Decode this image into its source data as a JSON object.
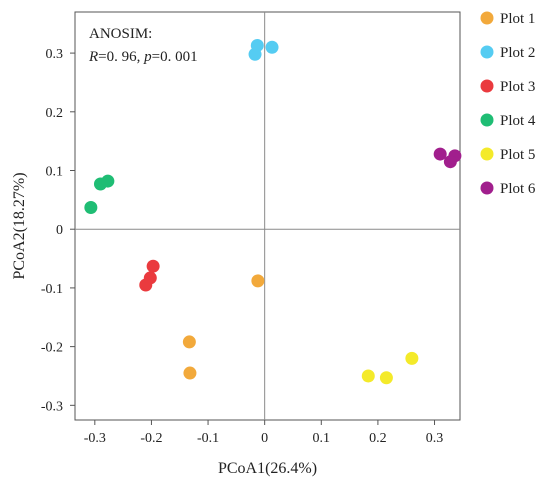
{
  "chart_data": {
    "type": "scatter",
    "xlabel": "PCoA1(26.4%)",
    "ylabel": "PCoA2(18.27%)",
    "xlim": [
      -0.335,
      0.345
    ],
    "ylim": [
      -0.325,
      0.37
    ],
    "xticks": [
      -0.3,
      -0.2,
      -0.1,
      0,
      0.1,
      0.2,
      0.3
    ],
    "xtick_labels": [
      "-0.3",
      "-0.2",
      "-0.1",
      "0",
      "0.1",
      "0.2",
      "0.3"
    ],
    "yticks": [
      -0.3,
      -0.2,
      -0.1,
      0,
      0.1,
      0.2,
      0.3
    ],
    "ytick_labels": [
      "-0.3",
      "-0.2",
      "-0.1",
      "0",
      "0.1",
      "0.2",
      "0.3"
    ],
    "grid": false,
    "reference_lines": "x=0, y=0",
    "legend_position": "right",
    "annotation": {
      "title": "ANOSIM:",
      "r_label": "R",
      "r_value": "=0. 96, ",
      "p_label": "p",
      "p_value": "=0. 001"
    },
    "series": [
      {
        "name": "Plot 1",
        "color": "#f2a93b",
        "points": [
          [
            -0.012,
            -0.088
          ],
          [
            -0.133,
            -0.192
          ],
          [
            -0.132,
            -0.245
          ]
        ]
      },
      {
        "name": "Plot 2",
        "color": "#55ccf2",
        "points": [
          [
            -0.013,
            0.313
          ],
          [
            -0.017,
            0.298
          ],
          [
            0.013,
            0.31
          ]
        ]
      },
      {
        "name": "Plot 3",
        "color": "#ea3a3e",
        "points": [
          [
            -0.197,
            -0.063
          ],
          [
            -0.202,
            -0.083
          ],
          [
            -0.21,
            -0.095
          ]
        ]
      },
      {
        "name": "Plot 4",
        "color": "#1fbd74",
        "points": [
          [
            -0.307,
            0.037
          ],
          [
            -0.29,
            0.077
          ],
          [
            -0.277,
            0.082
          ]
        ]
      },
      {
        "name": "Plot 5",
        "color": "#f4ea2a",
        "points": [
          [
            0.26,
            -0.22
          ],
          [
            0.183,
            -0.25
          ],
          [
            0.215,
            -0.253
          ]
        ]
      },
      {
        "name": "Plot 6",
        "color": "#a11f8d",
        "points": [
          [
            0.31,
            0.128
          ],
          [
            0.336,
            0.125
          ],
          [
            0.328,
            0.115
          ]
        ]
      }
    ]
  }
}
